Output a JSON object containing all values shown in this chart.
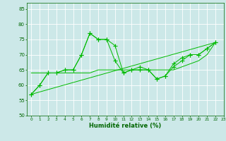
{
  "xlabel": "Humidité relative (%)",
  "xlim": [
    -0.5,
    23
  ],
  "ylim": [
    50,
    87
  ],
  "yticks": [
    50,
    55,
    60,
    65,
    70,
    75,
    80,
    85
  ],
  "xticks": [
    0,
    1,
    2,
    3,
    4,
    5,
    6,
    7,
    8,
    9,
    10,
    11,
    12,
    13,
    14,
    15,
    16,
    17,
    18,
    19,
    20,
    21,
    22,
    23
  ],
  "background_color": "#cce8e8",
  "grid_color": "#ffffff",
  "line_color": "#00bb00",
  "marker": "+",
  "line1_x": [
    0,
    1,
    2,
    3,
    4,
    5,
    6,
    7,
    8,
    9,
    10,
    11,
    12,
    13,
    14,
    15,
    16,
    17,
    18,
    19,
    20,
    21,
    22
  ],
  "line1_y": [
    57,
    60,
    64,
    64,
    65,
    65,
    70,
    77,
    75,
    75,
    73,
    64,
    65,
    66,
    65,
    62,
    63,
    67,
    69,
    70,
    70,
    72,
    74
  ],
  "line2_x": [
    0,
    1,
    2,
    3,
    4,
    5,
    6,
    7,
    8,
    9,
    10,
    11,
    12,
    13,
    14,
    15,
    16,
    17,
    18,
    19,
    20,
    21,
    22
  ],
  "line2_y": [
    57,
    60,
    64,
    64,
    65,
    65,
    70,
    77,
    75,
    75,
    68,
    64,
    65,
    65,
    65,
    62,
    63,
    66,
    68,
    70,
    70,
    72,
    74
  ],
  "line3_x": [
    0,
    22
  ],
  "line3_y": [
    57,
    74
  ],
  "line4_x": [
    0,
    1,
    2,
    3,
    4,
    5,
    6,
    7,
    8,
    9,
    10,
    11,
    12,
    13,
    14,
    15,
    16,
    17,
    18,
    19,
    20,
    21,
    22
  ],
  "line4_y": [
    64,
    64,
    64,
    64,
    64,
    64,
    64,
    64,
    65,
    65,
    65,
    65,
    65,
    65,
    65,
    65,
    65,
    65,
    66,
    67,
    68,
    70,
    74
  ]
}
